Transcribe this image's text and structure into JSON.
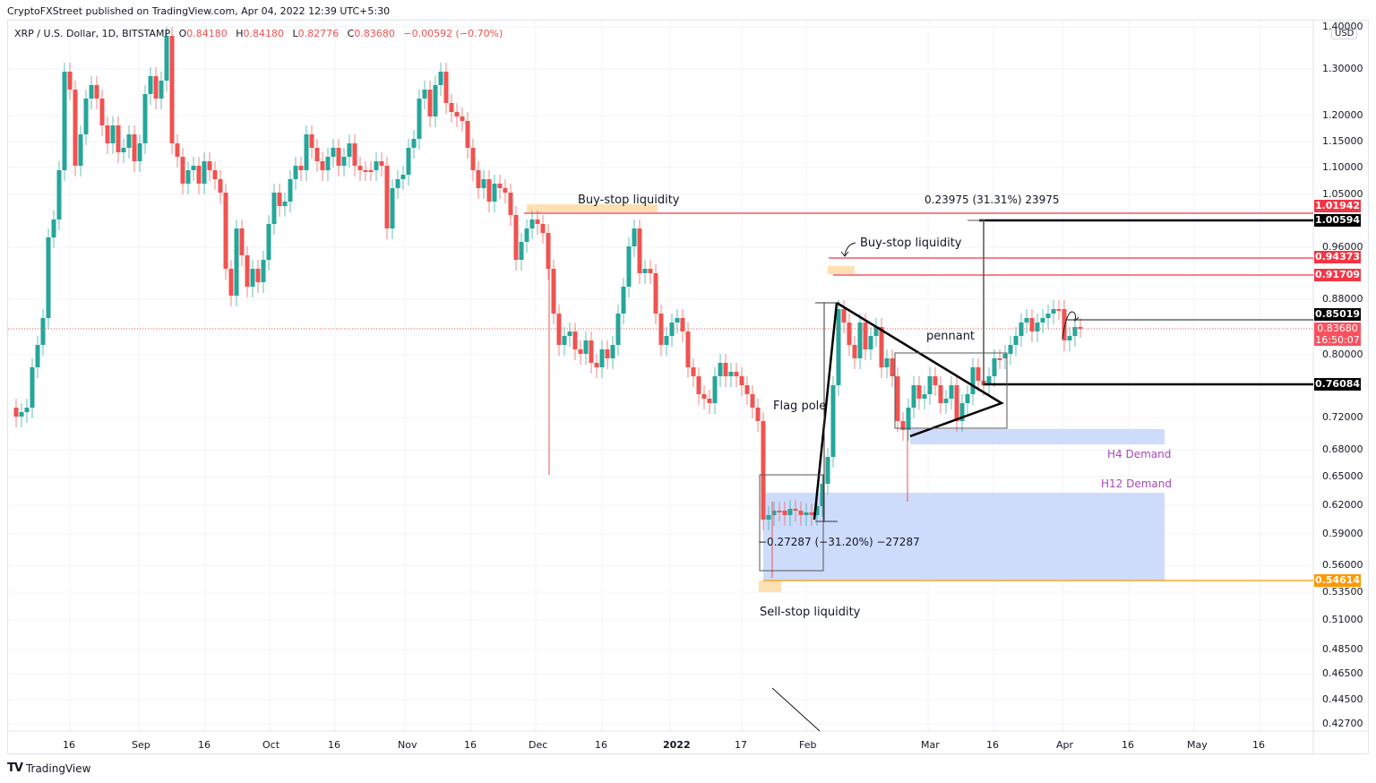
{
  "header": {
    "publish_line": "CryptoFXStreet published on TradingView.com, Apr 04, 2022 12:39 UTC+5:30"
  },
  "legend": {
    "symbol": "XRP / U.S. Dollar, 1D, BITSTAMP",
    "open_label": "O",
    "open": "0.84180",
    "high_label": "H",
    "high": "0.84180",
    "low_label": "L",
    "low": "0.82776",
    "close_label": "C",
    "close": "0.83680",
    "change": "−0.00592 (−0.70%)"
  },
  "price_axis": {
    "currency": "USD",
    "ticks": [
      "1.40000",
      "1.30000",
      "1.20000",
      "1.15000",
      "1.10000",
      "1.05000",
      "0.96000",
      "0.88000",
      "0.80000",
      "0.72000",
      "0.68000",
      "0.65000",
      "0.62000",
      "0.59000",
      "0.56000",
      "0.53500",
      "0.51000",
      "0.48500",
      "0.46500",
      "0.44500",
      "0.42700"
    ],
    "tags": [
      {
        "value": "1.01942",
        "color": "#f23645"
      },
      {
        "value": "1.00594",
        "color": "#000000"
      },
      {
        "value": "0.94373",
        "color": "#f23645"
      },
      {
        "value": "0.91709",
        "color": "#f23645"
      },
      {
        "value": "0.85019",
        "color": "#000000"
      },
      {
        "value": "0.83680",
        "countdown": "16:50:07",
        "color": "#f7525f"
      },
      {
        "value": "0.76084",
        "color": "#000000"
      },
      {
        "value": "0.54614",
        "color": "#ff9800"
      }
    ]
  },
  "time_axis": {
    "ticks": [
      "16",
      "Sep",
      "16",
      "Oct",
      "16",
      "Nov",
      "16",
      "Dec",
      "16",
      "2022",
      "17",
      "Feb",
      "Mar",
      "16",
      "Apr",
      "16",
      "May",
      "16"
    ]
  },
  "annotations": {
    "buy_stop_1": "Buy-stop liquidity",
    "buy_stop_2": "Buy-stop liquidity",
    "sell_stop": "Sell-stop liquidity",
    "flag_pole": "Flag pole",
    "pennant": "pennant",
    "measure_up": "0.23975 (31.31%) 23975",
    "measure_down": "−0.27287 (−31.20%) −27287",
    "h4_demand": "H4 Demand",
    "h12_demand": "H12 Demand"
  },
  "footer": {
    "brand": "TradingView"
  },
  "colors": {
    "up": "#26a69a",
    "down": "#ef5350",
    "resistance": "#f23645",
    "support_orange": "#ff9800",
    "demand_zone": "#c6d6fb",
    "liquidity_zone": "#ffe0b2",
    "demand_label": "#ab47bc"
  },
  "chart_data": {
    "type": "candlestick",
    "title": "XRP / U.S. Dollar, 1D, BITSTAMP",
    "xlabel": "",
    "ylabel": "USD",
    "ylim": [
      0.42,
      1.4
    ],
    "y_scale": "log",
    "grid": true,
    "x_ticks": [
      "16 Aug",
      "Sep",
      "16 Sep",
      "Oct",
      "16 Oct",
      "Nov",
      "16 Nov",
      "Dec",
      "16 Dec",
      "2022",
      "17 Jan",
      "Feb",
      "Mar",
      "16 Mar",
      "Apr",
      "16 Apr",
      "May",
      "16 May"
    ],
    "last_bar": {
      "open": 0.8418,
      "high": 0.8418,
      "low": 0.82776,
      "close": 0.8368,
      "change": -0.00592,
      "change_pct": -0.7
    },
    "approx_swing_points": [
      {
        "date": "early Aug 2021",
        "price": 0.72
      },
      {
        "date": "Sep 6 2021",
        "price": 1.41
      },
      {
        "date": "late Sep 2021",
        "price": 0.87
      },
      {
        "date": "Nov 10 2021",
        "price": 1.35
      },
      {
        "date": "Dec 4 2021",
        "price": 0.65
      },
      {
        "date": "Dec 22 2021",
        "price": 1.0
      },
      {
        "date": "Jan 24 2022",
        "price": 0.55
      },
      {
        "date": "Feb 7 2022",
        "price": 0.91
      },
      {
        "date": "Feb 24 2022",
        "price": 0.62
      },
      {
        "date": "Mar 29 2022",
        "price": 0.91
      },
      {
        "date": "Apr 4 2022",
        "price": 0.8368
      }
    ],
    "horizontal_levels": [
      1.01942,
      1.00594,
      0.94373,
      0.91709,
      0.85019,
      0.76084,
      0.54614
    ],
    "zones": [
      {
        "name": "H4 Demand",
        "from": 0.685,
        "to": 0.705
      },
      {
        "name": "H12 Demand",
        "from": 0.546,
        "to": 0.632
      }
    ],
    "measurements": [
      {
        "label": "0.23975 (31.31%) 23975",
        "direction": "up"
      },
      {
        "label": "−0.27287 (−31.20%) −27287",
        "direction": "down"
      }
    ],
    "patterns": [
      "Flag pole",
      "pennant"
    ]
  }
}
